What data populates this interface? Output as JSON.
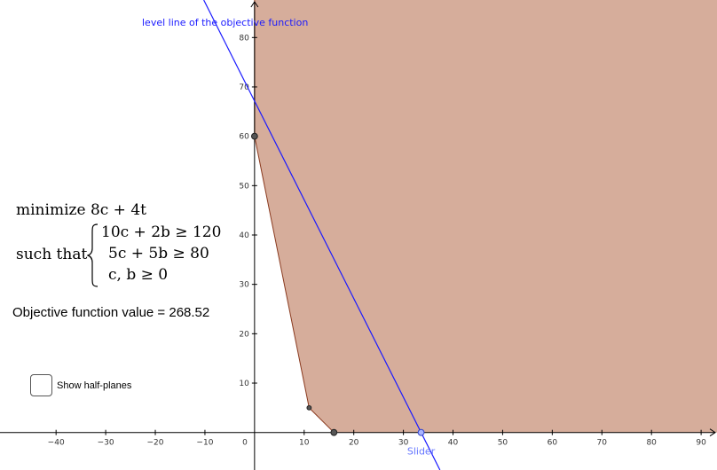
{
  "view": {
    "x_range": [
      -51.3,
      93.2
    ],
    "y_range": [
      -7.6,
      87.6
    ],
    "x_ticks": [
      -40,
      -30,
      -20,
      -10,
      10,
      20,
      30,
      40,
      50,
      60,
      70,
      80,
      90
    ],
    "y_ticks": [
      10,
      20,
      30,
      40,
      50,
      60,
      70,
      80
    ],
    "origin_label": "0",
    "grid": false
  },
  "feasible_region": {
    "vertices": [
      [
        0,
        87.6
      ],
      [
        0,
        60
      ],
      [
        11,
        5
      ],
      [
        16,
        0
      ],
      [
        93.2,
        0
      ],
      [
        93.2,
        87.6
      ]
    ],
    "fill_color": "#d6ad9b",
    "edge_color": "#8a3a1f"
  },
  "points": [
    {
      "name": "vertex-point-0-60",
      "x": 0,
      "y": 60,
      "style": "large"
    },
    {
      "name": "vertex-point-11-5",
      "x": 11,
      "y": 5,
      "style": "small"
    },
    {
      "name": "vertex-point-16-0",
      "x": 16,
      "y": 0,
      "style": "large"
    }
  ],
  "level_line": {
    "label": "level line of the objective function",
    "slope": -2,
    "color": "#1a1aff"
  },
  "slider": {
    "label": "Slider",
    "value": 33.565,
    "color": "#6677ff"
  },
  "math": {
    "objective_word": "minimize",
    "objective_expr": "8c + 4t",
    "such_that": "such that",
    "constraints": [
      "10c + 2b ≥ 120",
      "5c + 5b ≥ 80",
      "c, b ≥ 0"
    ]
  },
  "objective_value": {
    "text": "Objective function value = 268.52",
    "value": 268.52
  },
  "half_planes": {
    "label": "Show half-planes",
    "checked": false
  }
}
